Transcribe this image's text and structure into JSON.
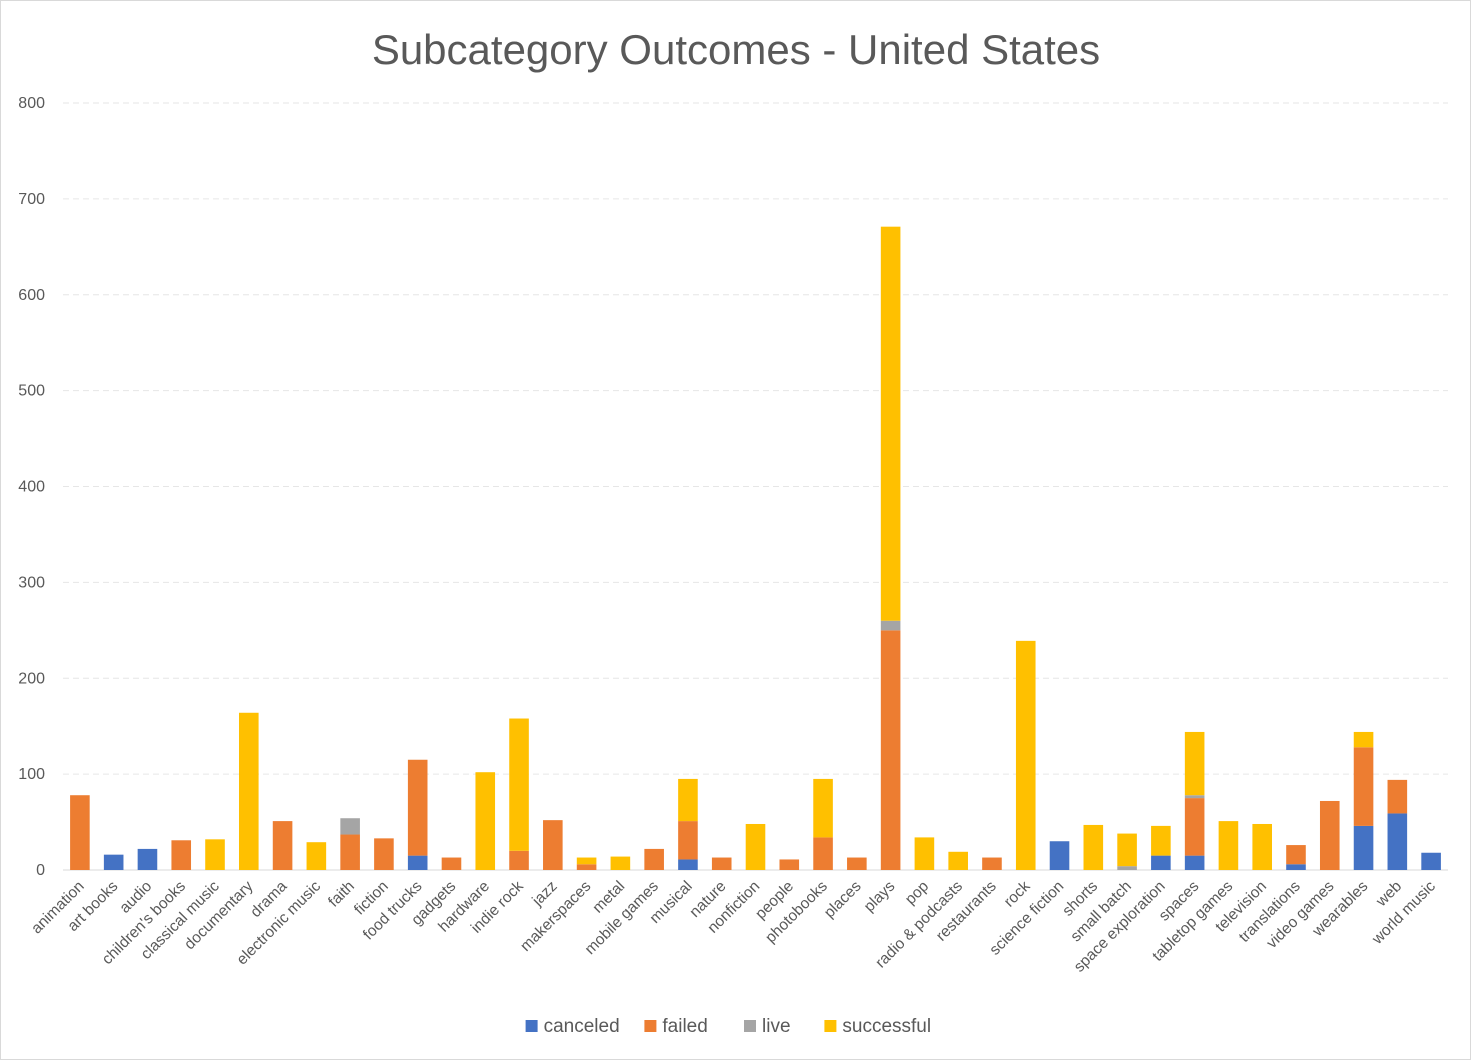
{
  "chart_data": {
    "type": "bar",
    "stacked": true,
    "title": "Subcategory Outcomes - United States",
    "xlabel": "",
    "ylabel": "",
    "ylim": [
      0,
      800
    ],
    "yticks": [
      0,
      100,
      200,
      300,
      400,
      500,
      600,
      700,
      800
    ],
    "grid": true,
    "legend_position": "bottom",
    "categories": [
      "animation",
      "art books",
      "audio",
      "children's books",
      "classical music",
      "documentary",
      "drama",
      "electronic music",
      "faith",
      "fiction",
      "food trucks",
      "gadgets",
      "hardware",
      "indie rock",
      "jazz",
      "makerspaces",
      "metal",
      "mobile games",
      "musical",
      "nature",
      "nonfiction",
      "people",
      "photobooks",
      "places",
      "plays",
      "pop",
      "radio & podcasts",
      "restaurants",
      "rock",
      "science fiction",
      "shorts",
      "small batch",
      "space exploration",
      "spaces",
      "tabletop games",
      "television",
      "translations",
      "video games",
      "wearables",
      "web",
      "world music"
    ],
    "series": [
      {
        "name": "canceled",
        "color": "#4472C4",
        "values": [
          0,
          16,
          22,
          0,
          0,
          0,
          0,
          0,
          0,
          0,
          15,
          0,
          0,
          0,
          0,
          0,
          0,
          0,
          11,
          0,
          0,
          0,
          0,
          0,
          0,
          0,
          0,
          0,
          0,
          30,
          0,
          0,
          15,
          15,
          0,
          0,
          6,
          0,
          46,
          59,
          18
        ]
      },
      {
        "name": "failed",
        "color": "#ED7D31",
        "values": [
          78,
          0,
          0,
          31,
          0,
          0,
          51,
          0,
          37,
          33,
          100,
          13,
          0,
          20,
          52,
          6,
          0,
          22,
          40,
          13,
          0,
          11,
          34,
          13,
          250,
          0,
          0,
          13,
          0,
          0,
          0,
          0,
          0,
          60,
          0,
          0,
          20,
          72,
          82,
          35,
          0
        ]
      },
      {
        "name": "live",
        "color": "#A5A5A5",
        "values": [
          0,
          0,
          0,
          0,
          0,
          0,
          0,
          0,
          17,
          0,
          0,
          0,
          0,
          0,
          0,
          0,
          0,
          0,
          0,
          0,
          0,
          0,
          0,
          0,
          10,
          0,
          0,
          0,
          0,
          0,
          0,
          4,
          0,
          3,
          0,
          0,
          0,
          0,
          0,
          0,
          0
        ]
      },
      {
        "name": "successful",
        "color": "#FFC000",
        "values": [
          0,
          0,
          0,
          0,
          32,
          164,
          0,
          29,
          0,
          0,
          0,
          0,
          102,
          138,
          0,
          7,
          14,
          0,
          44,
          0,
          48,
          0,
          61,
          0,
          411,
          34,
          19,
          0,
          239,
          0,
          47,
          34,
          31,
          66,
          51,
          48,
          0,
          0,
          16,
          0,
          0
        ]
      }
    ]
  }
}
